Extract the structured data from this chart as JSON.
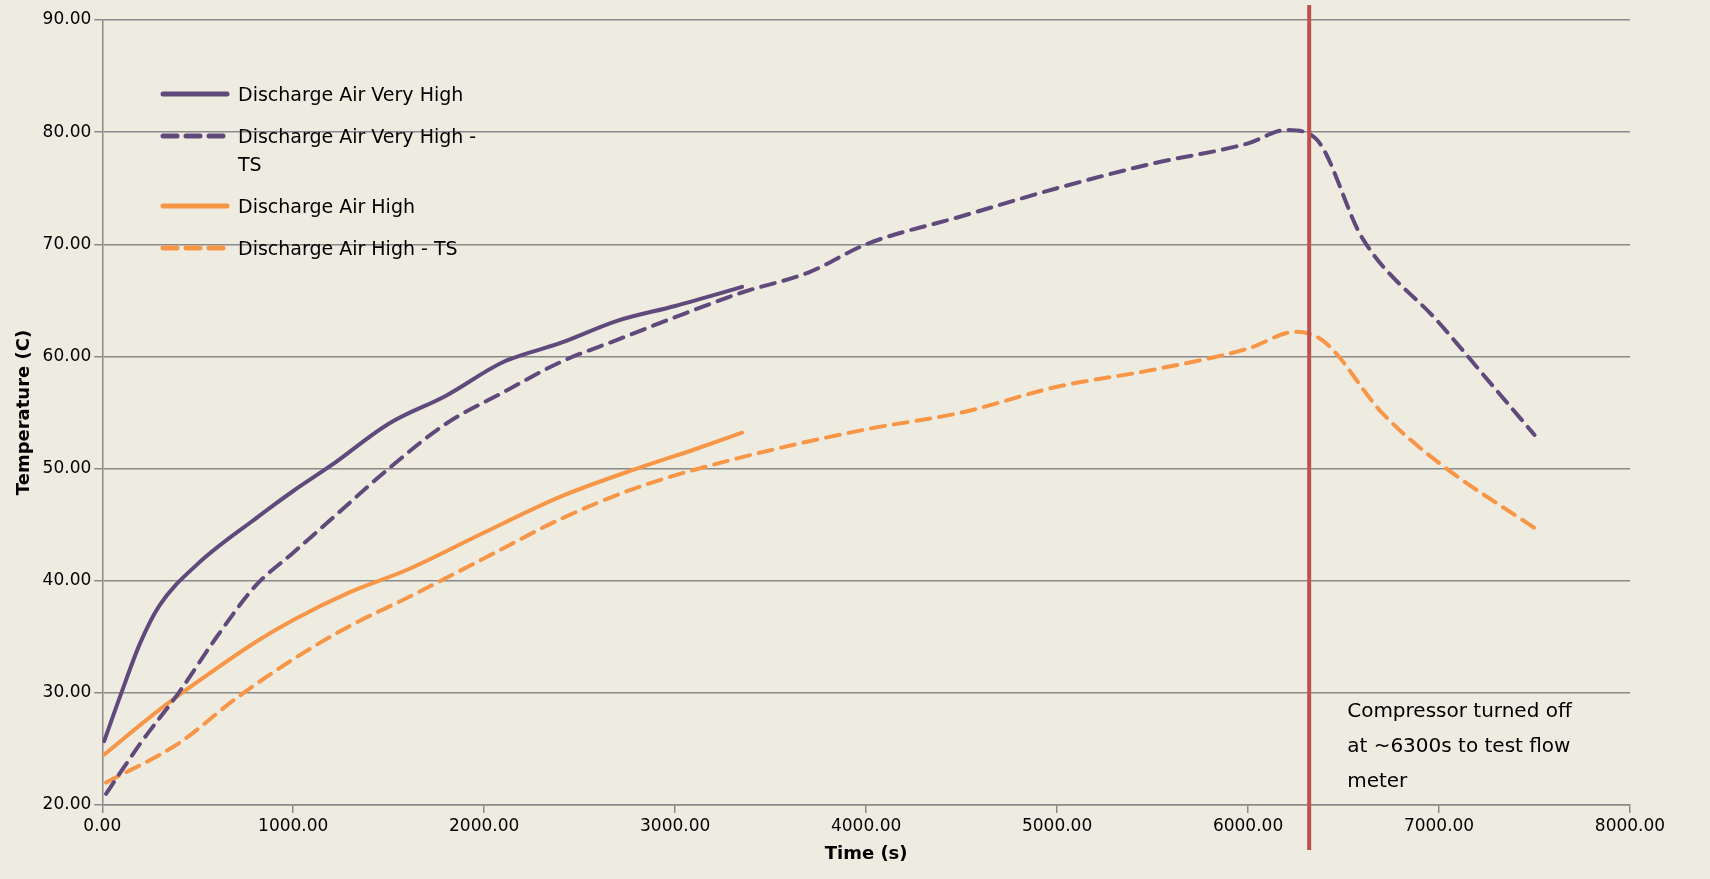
{
  "chart_data": {
    "type": "line",
    "xlabel": "Time (s)",
    "ylabel": "Temperature (C)",
    "xlim": [
      0,
      8000
    ],
    "xticks": [
      {
        "value": 0,
        "label": "0.00"
      },
      {
        "value": 1000,
        "label": "1000.00"
      },
      {
        "value": 2000,
        "label": "2000.00"
      },
      {
        "value": 3000,
        "label": "3000.00"
      },
      {
        "value": 4000,
        "label": "4000.00"
      },
      {
        "value": 5000,
        "label": "5000.00"
      },
      {
        "value": 6000,
        "label": "6000.00"
      },
      {
        "value": 7000,
        "label": "7000.00"
      },
      {
        "value": 8000,
        "label": "8000.00"
      }
    ],
    "ylim": [
      20,
      90
    ],
    "yticks": [
      {
        "value": 20,
        "label": "20.00"
      },
      {
        "value": 30,
        "label": "30.00"
      },
      {
        "value": 40,
        "label": "40.00"
      },
      {
        "value": 50,
        "label": "50.00"
      },
      {
        "value": 60,
        "label": "60.00"
      },
      {
        "value": 70,
        "label": "70.00"
      },
      {
        "value": 80,
        "label": "80.00"
      },
      {
        "value": 90,
        "label": "90.00"
      }
    ],
    "grid": "y",
    "legend": "top left",
    "marker": "none",
    "series": [
      {
        "name": "Discharge Air Very High",
        "color": "#604a7b",
        "line_style": "solid",
        "x": [
          10,
          100,
          200,
          300,
          500,
          800,
          1000,
          1200,
          1500,
          1800,
          2100,
          2400,
          2700,
          3000,
          3350
        ],
        "values": [
          25.7,
          30,
          34.5,
          37.8,
          41.5,
          45.5,
          48,
          50.3,
          54,
          56.5,
          59.5,
          61.2,
          63.2,
          64.5,
          66.2
        ]
      },
      {
        "name": "Discharge Air Very High - TS",
        "color": "#604a7b",
        "line_style": "dashed",
        "x": [
          20,
          200,
          400,
          600,
          800,
          1000,
          1200,
          1500,
          1800,
          2100,
          2400,
          2700,
          3000,
          3350,
          3700,
          4000,
          4500,
          5000,
          5500,
          6000,
          6200,
          6350,
          6600,
          7000,
          7300,
          7500
        ],
        "values": [
          21,
          25.5,
          30,
          35,
          39.5,
          42.5,
          45.5,
          50,
          54,
          56.8,
          59.5,
          61.5,
          63.5,
          65.7,
          67.5,
          70,
          72.5,
          75,
          77.2,
          79,
          80.2,
          79.5,
          70.5,
          63,
          57,
          53
        ]
      },
      {
        "name": "Discharge Air High",
        "color": "#f79646",
        "line_style": "solid",
        "x": [
          10,
          300,
          500,
          800,
          1000,
          1300,
          1600,
          2000,
          2400,
          2800,
          3100,
          3350
        ],
        "values": [
          24.5,
          28.5,
          31,
          34.5,
          36.5,
          39,
          41,
          44.3,
          47.5,
          50,
          51.7,
          53.2
        ]
      },
      {
        "name": "Discharge Air High - TS",
        "color": "#f79646",
        "line_style": "dashed",
        "x": [
          20,
          400,
          700,
          1000,
          1300,
          1600,
          2000,
          2400,
          2800,
          3300,
          4000,
          4500,
          5000,
          5500,
          6000,
          6250,
          6400,
          6700,
          7000,
          7500
        ],
        "values": [
          22,
          25.5,
          29.5,
          33,
          36,
          38.5,
          42,
          45.5,
          48.3,
          50.8,
          53.5,
          55,
          57.3,
          58.8,
          60.7,
          62.2,
          61.3,
          55,
          50.5,
          44.7
        ]
      }
    ],
    "ref_lines": [
      {
        "axis": "x",
        "value": 6320,
        "color": "#c0504d",
        "line_style": "solid",
        "label": "Compressor turned off at ~6300s to test flow meter"
      }
    ]
  }
}
